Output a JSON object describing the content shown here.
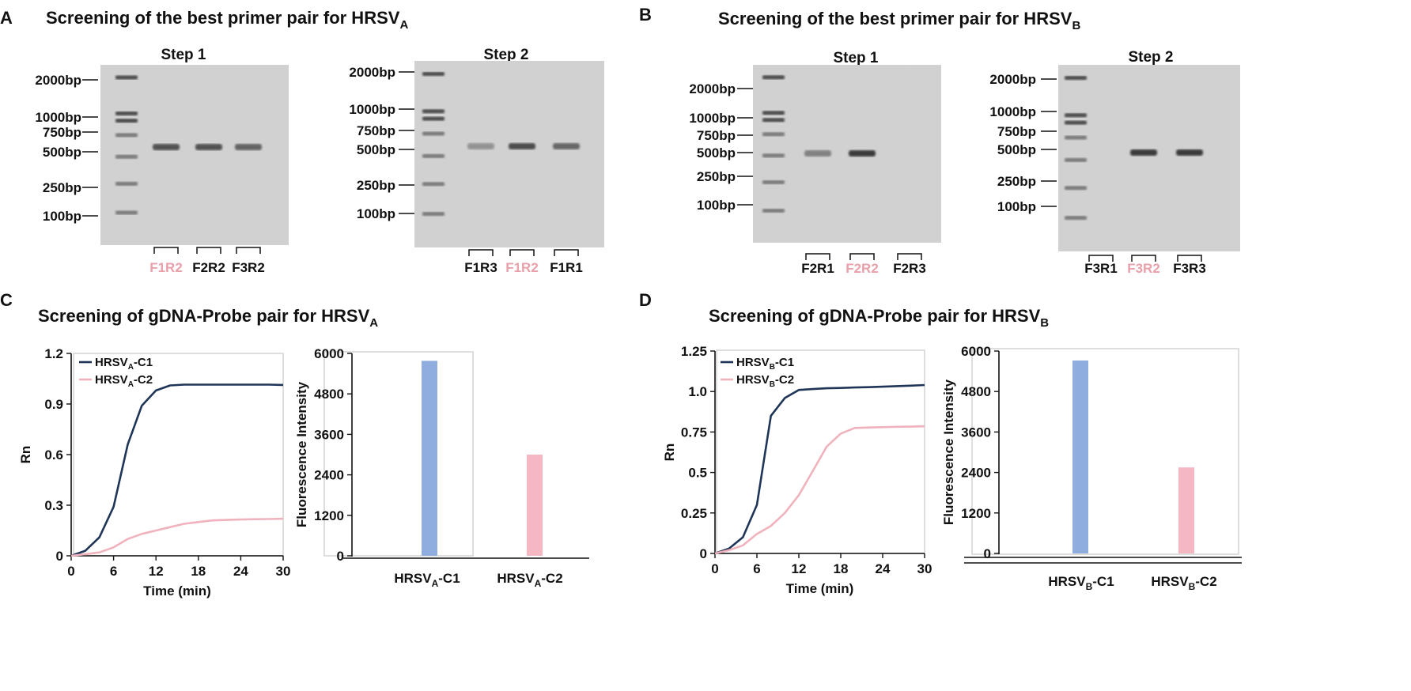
{
  "colors": {
    "navy": "#1f3557",
    "pink": "#f0b3bd",
    "blueBar": "#8faedf",
    "pinkBar": "#f5b8c2",
    "highlight": "#e8a0aa",
    "gel": "#d2d2d2",
    "axis": "#111111",
    "frame": "#d3d3d3"
  },
  "panels": {
    "A": {
      "letter": "A",
      "title": "Screening of the best primer pair for HRSV",
      "sub": "A"
    },
    "B": {
      "letter": "B",
      "title": "Screening of the best primer pair for HRSV",
      "sub": "B"
    },
    "C": {
      "letter": "C",
      "title": "Screening of gDNA-Probe pair for HRSV",
      "sub": "A"
    },
    "D": {
      "letter": "D",
      "title": "Screening of gDNA-Probe pair for HRSV",
      "sub": "B"
    }
  },
  "gels": [
    {
      "title": "Step 1",
      "markers": [
        "2000bp",
        "1000bp",
        "750bp",
        "500bp",
        "250bp",
        "100bp"
      ],
      "lanes": [
        "F1R2",
        "F2R2",
        "F3R2"
      ],
      "highlight": 0,
      "bands": [
        0.72,
        0.72,
        0.62
      ]
    },
    {
      "title": "Step 2",
      "markers": [
        "2000bp",
        "1000bp",
        "750bp",
        "500bp",
        "250bp",
        "100bp"
      ],
      "lanes": [
        "F1R3",
        "F1R2",
        "F1R1"
      ],
      "highlight": 1,
      "bands": [
        0.35,
        0.75,
        0.6
      ]
    },
    {
      "title": "Step 1",
      "markers": [
        "2000bp",
        "1000bp",
        "750bp",
        "500bp",
        "250bp",
        "100bp"
      ],
      "lanes": [
        "F2R1",
        "F2R2",
        "F2R3"
      ],
      "highlight": 1,
      "bands": [
        0.45,
        0.85,
        0
      ]
    },
    {
      "title": "Step 2",
      "markers": [
        "2000bp",
        "1000bp",
        "750bp",
        "500bp",
        "250bp",
        "100bp"
      ],
      "lanes": [
        "F3R1",
        "F3R2",
        "F3R3"
      ],
      "highlight": 1,
      "bands": [
        0,
        0.85,
        0.85
      ]
    }
  ],
  "chart_data": [
    {
      "type": "line",
      "panel": "C",
      "xlabel": "Time (min)",
      "ylabel": "Rn",
      "xlim": [
        0,
        30
      ],
      "ylim": [
        0,
        1.2
      ],
      "xticks": [
        "0",
        "6",
        "12",
        "18",
        "24",
        "30"
      ],
      "yticks": [
        "0",
        "0.3",
        "0.6",
        "0.9",
        "1.2"
      ],
      "series": [
        {
          "name": "HRSV",
          "sub": "A",
          "suffix": "-C1",
          "color": "#1f3557",
          "x": [
            0,
            2,
            4,
            6,
            8,
            10,
            12,
            14,
            16,
            18,
            20,
            22,
            24,
            26,
            28,
            30
          ],
          "y": [
            0,
            0.03,
            0.11,
            0.29,
            0.66,
            0.89,
            0.98,
            1.01,
            1.015,
            1.015,
            1.015,
            1.015,
            1.015,
            1.015,
            1.015,
            1.013
          ]
        },
        {
          "name": "HRSV",
          "sub": "A",
          "suffix": "-C2",
          "color": "#f0b3bd",
          "x": [
            0,
            2,
            4,
            6,
            8,
            10,
            12,
            14,
            16,
            18,
            20,
            22,
            24,
            26,
            28,
            30
          ],
          "y": [
            0,
            0.01,
            0.02,
            0.05,
            0.1,
            0.13,
            0.15,
            0.17,
            0.19,
            0.2,
            0.21,
            0.213,
            0.215,
            0.217,
            0.218,
            0.22
          ]
        }
      ]
    },
    {
      "type": "bar",
      "panel": "C",
      "ylabel": "Fluorescence Intensity",
      "ylim": [
        0,
        6000
      ],
      "yticks": [
        "0",
        "1200",
        "2400",
        "3600",
        "4800",
        "6000"
      ],
      "categories": [
        {
          "name": "HRSV",
          "sub": "A",
          "suffix": "-C1"
        },
        {
          "name": "HRSV",
          "sub": "A",
          "suffix": "-C2"
        }
      ],
      "values": [
        5780,
        3000
      ],
      "colors": [
        "#8faedf",
        "#f5b8c2"
      ]
    },
    {
      "type": "line",
      "panel": "D",
      "xlabel": "Time (min)",
      "ylabel": "Rn",
      "xlim": [
        0,
        30
      ],
      "ylim": [
        0,
        1.25
      ],
      "xticks": [
        "0",
        "6",
        "12",
        "18",
        "24",
        "30"
      ],
      "yticks": [
        "0",
        "0.25",
        "0.5",
        "0.75",
        "1.0",
        "1.25"
      ],
      "series": [
        {
          "name": "HRSV",
          "sub": "B",
          "suffix": "-C1",
          "color": "#1f3557",
          "x": [
            0,
            2,
            4,
            6,
            8,
            10,
            12,
            14,
            16,
            18,
            20,
            22,
            24,
            26,
            28,
            30
          ],
          "y": [
            0,
            0.03,
            0.1,
            0.3,
            0.85,
            0.96,
            1.01,
            1.015,
            1.02,
            1.022,
            1.025,
            1.027,
            1.03,
            1.033,
            1.036,
            1.04
          ]
        },
        {
          "name": "HRSV",
          "sub": "B",
          "suffix": "-C2",
          "color": "#f0b3bd",
          "x": [
            0,
            2,
            4,
            6,
            8,
            10,
            12,
            14,
            16,
            18,
            20,
            22,
            24,
            26,
            28,
            30
          ],
          "y": [
            0,
            0.02,
            0.05,
            0.12,
            0.17,
            0.25,
            0.36,
            0.51,
            0.66,
            0.74,
            0.775,
            0.778,
            0.78,
            0.782,
            0.783,
            0.785
          ]
        }
      ]
    },
    {
      "type": "bar",
      "panel": "D",
      "ylabel": "Fluorescence Intensity",
      "ylim": [
        0,
        6000
      ],
      "yticks": [
        "0",
        "1200",
        "2400",
        "3600",
        "4800",
        "6000"
      ],
      "categories": [
        {
          "name": "HRSV",
          "sub": "B",
          "suffix": "-C1"
        },
        {
          "name": "HRSV",
          "sub": "B",
          "suffix": "-C2"
        }
      ],
      "values": [
        5720,
        2550
      ],
      "colors": [
        "#8faedf",
        "#f5b8c2"
      ]
    }
  ]
}
